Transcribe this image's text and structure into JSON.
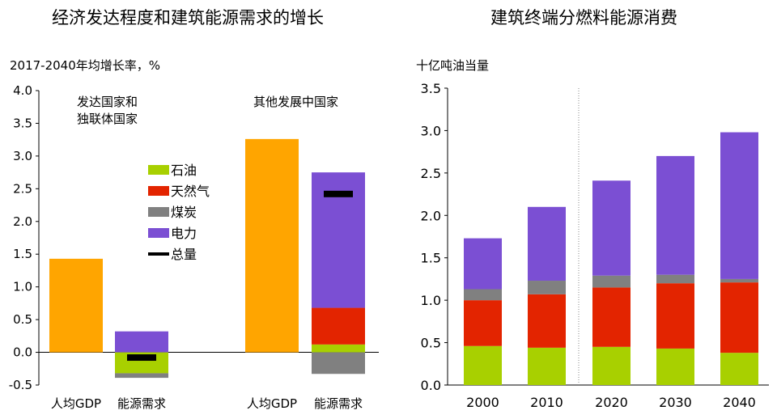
{
  "colors": {
    "gdp": "#FFA500",
    "oil": "#A8D000",
    "gas": "#E32400",
    "coal": "#808080",
    "power": "#7B4FD3",
    "total": "#000000"
  },
  "chart_data": [
    {
      "type": "bar",
      "title": "经济发达程度和建筑能源需求的增长",
      "ylabel": "2017-2040年均增长率，%",
      "ylim": [
        -0.5,
        4.0
      ],
      "yticks": [
        "-0.5",
        "0.0",
        "0.5",
        "1.0",
        "1.5",
        "2.0",
        "2.5",
        "3.0",
        "3.5",
        "4.0"
      ],
      "groups": [
        {
          "name": "发达国家和独联体国家",
          "name_lines": [
            "发达国家和",
            "独联体国家"
          ],
          "bars": [
            {
              "category": "人均GDP",
              "gdp": 1.43
            },
            {
              "category": "能源需求",
              "oil": -0.32,
              "gas": 0.0,
              "coal": -0.07,
              "power": 0.32,
              "total": -0.08
            }
          ]
        },
        {
          "name": "其他发展中国家",
          "name_lines": [
            "其他发展中国家"
          ],
          "bars": [
            {
              "category": "人均GDP",
              "gdp": 3.26
            },
            {
              "category": "能源需求",
              "oil": 0.12,
              "gas": 0.56,
              "coal": -0.33,
              "power": 2.07,
              "total": 2.42
            }
          ]
        }
      ],
      "legend": [
        {
          "key": "oil",
          "label": "石油"
        },
        {
          "key": "gas",
          "label": "天然气"
        },
        {
          "key": "coal",
          "label": "煤炭"
        },
        {
          "key": "power",
          "label": "电力"
        },
        {
          "key": "total",
          "label": "总量"
        }
      ]
    },
    {
      "type": "bar",
      "stacked": true,
      "title": "建筑终端分燃料能源消费",
      "ylabel": "十亿吨油当量",
      "ylim": [
        0.0,
        3.5
      ],
      "yticks": [
        "0.0",
        "0.5",
        "1.0",
        "1.5",
        "2.0",
        "2.5",
        "3.0",
        "3.5"
      ],
      "categories": [
        "2000",
        "2010",
        "2020",
        "2030",
        "2040"
      ],
      "divider_after": "2010",
      "series": [
        {
          "key": "oil",
          "values": [
            0.46,
            0.44,
            0.45,
            0.43,
            0.38
          ]
        },
        {
          "key": "gas",
          "values": [
            0.54,
            0.63,
            0.7,
            0.77,
            0.83
          ]
        },
        {
          "key": "coal",
          "values": [
            0.13,
            0.16,
            0.14,
            0.1,
            0.04
          ]
        },
        {
          "key": "power",
          "values": [
            0.6,
            0.87,
            1.12,
            1.4,
            1.73
          ]
        }
      ]
    }
  ]
}
